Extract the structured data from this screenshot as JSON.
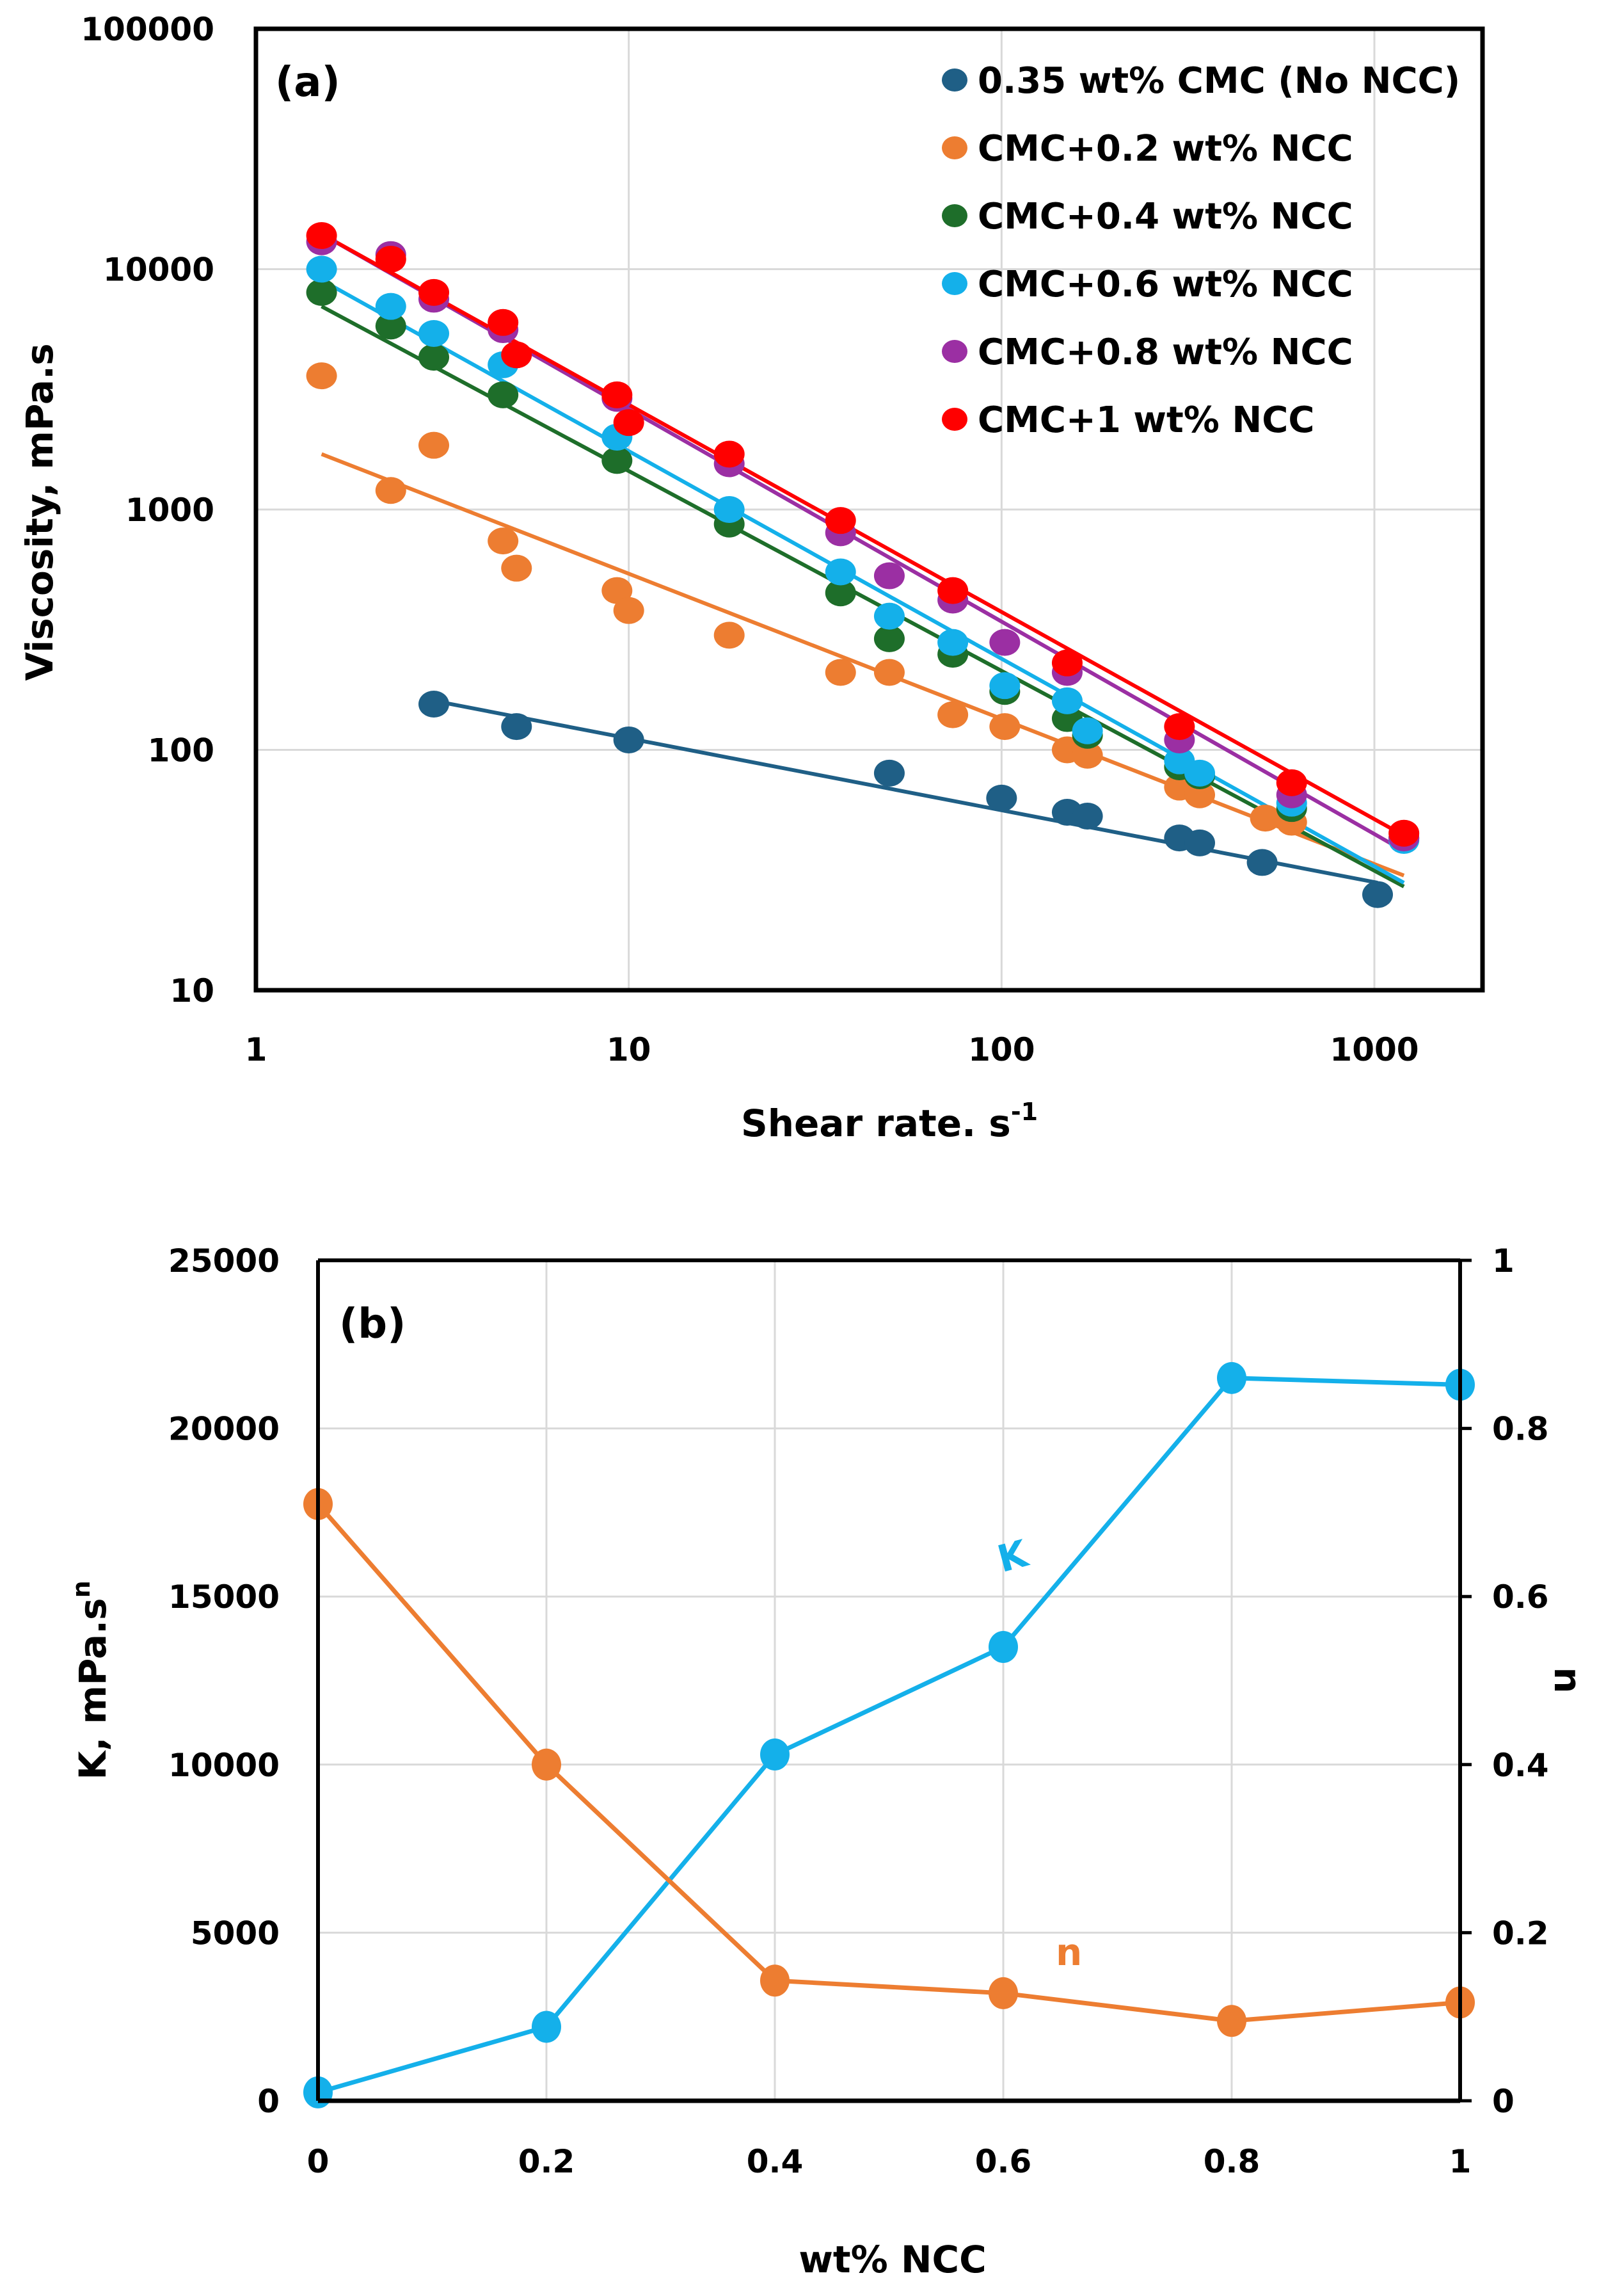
{
  "chart_data": [
    {
      "type": "scatter",
      "panel_label": "(a)",
      "xlabel": "Shear rate. s",
      "xlabel_sup": "-1",
      "ylabel": "Viscosity, mPa.s",
      "xscale": "log",
      "yscale": "log",
      "xlim": [
        1,
        1950
      ],
      "ylim": [
        10,
        100000
      ],
      "xticks": [
        "1",
        "10",
        "100",
        "1000"
      ],
      "yticks": [
        "10",
        "100",
        "1000",
        "10000",
        "100000"
      ],
      "grid": true,
      "legend_position": "top-right",
      "trendlines": "power-law fit per series",
      "series": [
        {
          "name": "0.35 wt% CMC (No NCC)",
          "color": "#1f5f86",
          "x": [
            3,
            5,
            10,
            50,
            100,
            150,
            170,
            300,
            340,
            500,
            1020
          ],
          "y": [
            155,
            125,
            110,
            80,
            63,
            55,
            53,
            43,
            41,
            34,
            25
          ],
          "fit": [
            [
              3,
              160
            ],
            [
              1020,
              28
            ]
          ]
        },
        {
          "name": "CMC+0.2 wt% NCC",
          "color": "#ed7d31",
          "x": [
            1.5,
            2.3,
            3,
            4.6,
            5,
            9.3,
            10,
            18.6,
            37,
            50,
            74,
            102,
            150,
            170,
            300,
            340,
            510,
            600
          ],
          "y": [
            3600,
            1200,
            1850,
            740,
            570,
            460,
            380,
            300,
            210,
            210,
            140,
            125,
            100,
            95,
            70,
            65,
            52,
            50
          ],
          "fit": [
            [
              1.5,
              1700
            ],
            [
              1200,
              30
            ]
          ]
        },
        {
          "name": "CMC+0.4 wt% NCC",
          "color": "#1e6e2a",
          "x": [
            1.5,
            2.3,
            3,
            4.6,
            9.3,
            18.6,
            37,
            50,
            74,
            102,
            150,
            170,
            300,
            340,
            600,
            1200
          ],
          "y": [
            8000,
            5800,
            4300,
            3000,
            1600,
            870,
            450,
            290,
            250,
            175,
            135,
            115,
            85,
            78,
            57,
            43
          ],
          "fit": [
            [
              1.5,
              7000
            ],
            [
              1200,
              27
            ]
          ]
        },
        {
          "name": "CMC+0.6 wt% NCC",
          "color": "#14b0ea",
          "x": [
            1.5,
            2.3,
            3,
            4.6,
            9.3,
            18.6,
            37,
            50,
            74,
            102,
            150,
            170,
            300,
            340,
            600,
            1200
          ],
          "y": [
            10000,
            7000,
            5400,
            4000,
            2000,
            1000,
            550,
            360,
            280,
            185,
            160,
            120,
            90,
            80,
            60,
            42
          ],
          "fit": [
            [
              1.5,
              9000
            ],
            [
              1200,
              28
            ]
          ]
        },
        {
          "name": "CMC+0.8 wt% NCC",
          "color": "#9b2fa3",
          "x": [
            1.5,
            2.3,
            3,
            4.6,
            9.3,
            18.6,
            37,
            50,
            74,
            102,
            150,
            300,
            600,
            1200
          ],
          "y": [
            13000,
            11500,
            7500,
            5600,
            2900,
            1550,
            800,
            530,
            420,
            280,
            210,
            110,
            65,
            43
          ],
          "fit": [
            [
              1.5,
              14000
            ],
            [
              1200,
              38
            ]
          ]
        },
        {
          "name": "CMC+1 wt% NCC",
          "color": "#ff0000",
          "x": [
            1.5,
            2.3,
            3,
            4.6,
            5,
            9.3,
            10,
            18.6,
            37,
            74,
            150,
            300,
            600,
            1200
          ],
          "y": [
            13800,
            11000,
            8000,
            6000,
            4400,
            3000,
            2300,
            1700,
            900,
            460,
            230,
            125,
            73,
            45
          ],
          "fit": [
            [
              1.5,
              14000
            ],
            [
              1200,
              44
            ]
          ]
        }
      ]
    },
    {
      "type": "line",
      "panel_label": "(b)",
      "xlabel": "wt% NCC",
      "ylabel": "K, mPa.s",
      "ylabel_sup": "n",
      "y2label": "n",
      "xlim": [
        0,
        1
      ],
      "ylim": [
        0,
        25000
      ],
      "y2lim": [
        0,
        1
      ],
      "xticks": [
        "0",
        "0.2",
        "0.4",
        "0.6",
        "0.8",
        "1"
      ],
      "yticks": [
        "0",
        "5000",
        "10000",
        "15000",
        "20000",
        "25000"
      ],
      "y2ticks": [
        "0",
        "0.2",
        "0.4",
        "0.6",
        "0.8",
        "1"
      ],
      "grid": true,
      "x": [
        0,
        0.2,
        0.4,
        0.6,
        0.8,
        1
      ],
      "series": [
        {
          "name": "K",
          "axis": "left",
          "color": "#14b0ea",
          "values": [
            250,
            2200,
            10300,
            13500,
            21500,
            21300
          ]
        },
        {
          "name": "n",
          "axis": "right",
          "color": "#ed7d31",
          "values": [
            0.71,
            0.4,
            0.143,
            0.128,
            0.095,
            0.117
          ]
        }
      ]
    }
  ]
}
